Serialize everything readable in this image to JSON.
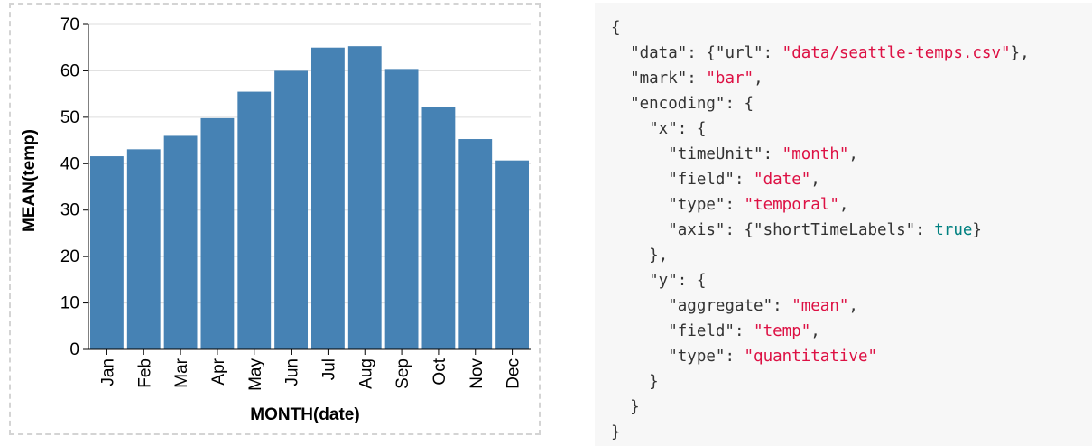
{
  "chart_data": {
    "type": "bar",
    "categories": [
      "Jan",
      "Feb",
      "Mar",
      "Apr",
      "May",
      "Jun",
      "Jul",
      "Aug",
      "Sep",
      "Oct",
      "Nov",
      "Dec"
    ],
    "values": [
      41.6,
      43.1,
      46.0,
      49.8,
      55.5,
      60.0,
      65.0,
      65.3,
      60.4,
      52.2,
      45.3,
      40.7
    ],
    "xlabel": "MONTH(date)",
    "ylabel": "MEAN(temp)",
    "ylim": [
      0,
      70
    ],
    "yticks": [
      "0",
      "10",
      "20",
      "30",
      "40",
      "50",
      "60",
      "70"
    ],
    "grid": true,
    "bar_color": "#4682b4"
  },
  "code": {
    "lines": [
      [
        {
          "t": "{",
          "c": "pn"
        }
      ],
      [
        {
          "t": "  \"data\"",
          "c": "key"
        },
        {
          "t": ": {",
          "c": "pn"
        },
        {
          "t": "\"url\"",
          "c": "key"
        },
        {
          "t": ": ",
          "c": "pn"
        },
        {
          "t": "\"data/seattle-temps.csv\"",
          "c": "str"
        },
        {
          "t": "},",
          "c": "pn"
        }
      ],
      [
        {
          "t": "  \"mark\"",
          "c": "key"
        },
        {
          "t": ": ",
          "c": "pn"
        },
        {
          "t": "\"bar\"",
          "c": "str"
        },
        {
          "t": ",",
          "c": "pn"
        }
      ],
      [
        {
          "t": "  \"encoding\"",
          "c": "key"
        },
        {
          "t": ": {",
          "c": "pn"
        }
      ],
      [
        {
          "t": "    \"x\"",
          "c": "key"
        },
        {
          "t": ": {",
          "c": "pn"
        }
      ],
      [
        {
          "t": "      \"timeUnit\"",
          "c": "key"
        },
        {
          "t": ": ",
          "c": "pn"
        },
        {
          "t": "\"month\"",
          "c": "str"
        },
        {
          "t": ",",
          "c": "pn"
        }
      ],
      [
        {
          "t": "      \"field\"",
          "c": "key"
        },
        {
          "t": ": ",
          "c": "pn"
        },
        {
          "t": "\"date\"",
          "c": "str"
        },
        {
          "t": ",",
          "c": "pn"
        }
      ],
      [
        {
          "t": "      \"type\"",
          "c": "key"
        },
        {
          "t": ": ",
          "c": "pn"
        },
        {
          "t": "\"temporal\"",
          "c": "str"
        },
        {
          "t": ",",
          "c": "pn"
        }
      ],
      [
        {
          "t": "      \"axis\"",
          "c": "key"
        },
        {
          "t": ": {",
          "c": "pn"
        },
        {
          "t": "\"shortTimeLabels\"",
          "c": "key"
        },
        {
          "t": ": ",
          "c": "pn"
        },
        {
          "t": "true",
          "c": "lit"
        },
        {
          "t": "}",
          "c": "pn"
        }
      ],
      [
        {
          "t": "    },",
          "c": "pn"
        }
      ],
      [
        {
          "t": "    \"y\"",
          "c": "key"
        },
        {
          "t": ": {",
          "c": "pn"
        }
      ],
      [
        {
          "t": "      \"aggregate\"",
          "c": "key"
        },
        {
          "t": ": ",
          "c": "pn"
        },
        {
          "t": "\"mean\"",
          "c": "str"
        },
        {
          "t": ",",
          "c": "pn"
        }
      ],
      [
        {
          "t": "      \"field\"",
          "c": "key"
        },
        {
          "t": ": ",
          "c": "pn"
        },
        {
          "t": "\"temp\"",
          "c": "str"
        },
        {
          "t": ",",
          "c": "pn"
        }
      ],
      [
        {
          "t": "      \"type\"",
          "c": "key"
        },
        {
          "t": ": ",
          "c": "pn"
        },
        {
          "t": "\"quantitative\"",
          "c": "str"
        }
      ],
      [
        {
          "t": "    }",
          "c": "pn"
        }
      ],
      [
        {
          "t": "  }",
          "c": "pn"
        }
      ],
      [
        {
          "t": "}",
          "c": "pn"
        }
      ]
    ]
  }
}
